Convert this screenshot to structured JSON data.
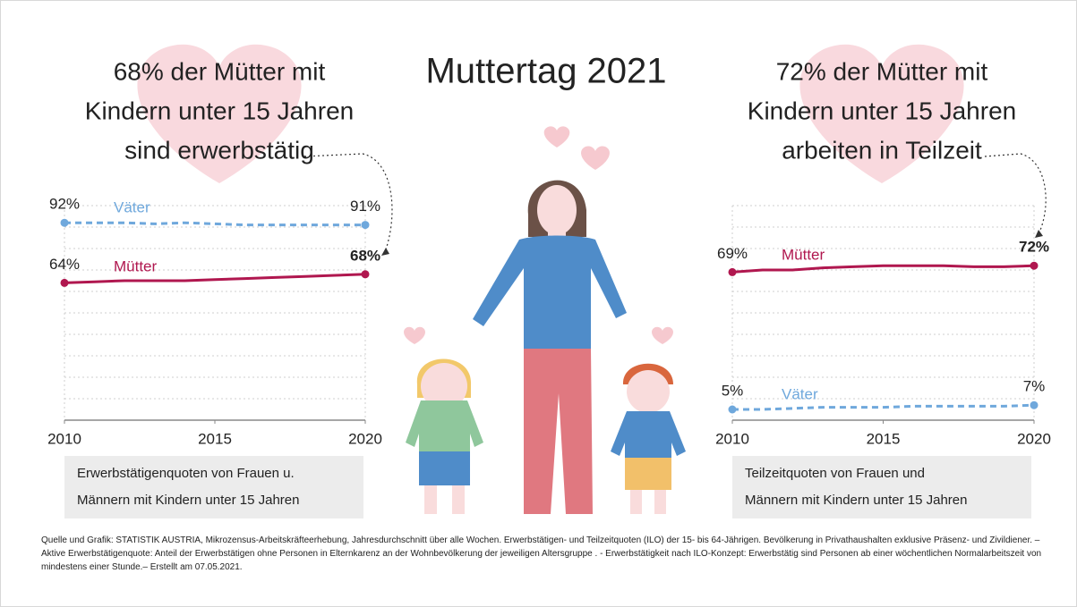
{
  "title": "Muttertag 2021",
  "chart_data": [
    {
      "type": "line",
      "annotation": [
        "68% der Mütter mit",
        "Kindern unter 15 Jahren",
        "sind erwerbstätig"
      ],
      "caption": [
        "Erwerbstätigenquoten von Frauen u.",
        "Männern mit Kindern unter 15 Jahren"
      ],
      "x": [
        2010,
        2011,
        2012,
        2013,
        2014,
        2015,
        2016,
        2017,
        2018,
        2019,
        2020
      ],
      "xlim": [
        2010,
        2020
      ],
      "xticks": [
        2010,
        2015,
        2020
      ],
      "ylim": [
        0,
        100
      ],
      "grid": true,
      "series": [
        {
          "name": "Mütter",
          "color": "#b0174f",
          "linestyle": "solid",
          "values": [
            64,
            64.5,
            65,
            65,
            65,
            65.5,
            66,
            66.5,
            67,
            67.5,
            68
          ],
          "value_labels": [
            "64%",
            null,
            null,
            null,
            null,
            null,
            null,
            null,
            null,
            null,
            "68%"
          ]
        },
        {
          "name": "Väter",
          "color": "#6fa8dc",
          "linestyle": "dashed",
          "values": [
            92,
            92,
            92,
            91.5,
            92,
            91.5,
            91,
            91,
            91,
            91,
            91
          ],
          "value_labels": [
            "92%",
            null,
            null,
            null,
            null,
            null,
            null,
            null,
            null,
            null,
            "91%"
          ]
        }
      ]
    },
    {
      "type": "line",
      "annotation": [
        "72% der Mütter mit",
        "Kindern unter 15 Jahren",
        "arbeiten in Teilzeit"
      ],
      "caption": [
        "Teilzeitquoten von Frauen und",
        "Männern mit Kindern unter 15 Jahren"
      ],
      "x": [
        2010,
        2011,
        2012,
        2013,
        2014,
        2015,
        2016,
        2017,
        2018,
        2019,
        2020
      ],
      "xlim": [
        2010,
        2020
      ],
      "xticks": [
        2010,
        2015,
        2020
      ],
      "ylim": [
        0,
        100
      ],
      "grid": true,
      "series": [
        {
          "name": "Mütter",
          "color": "#b0174f",
          "linestyle": "solid",
          "values": [
            69,
            70,
            70,
            71,
            71.5,
            72,
            72,
            72,
            71.5,
            71.5,
            72
          ],
          "value_labels": [
            "69%",
            null,
            null,
            null,
            null,
            null,
            null,
            null,
            null,
            null,
            "72%"
          ]
        },
        {
          "name": "Väter",
          "color": "#6fa8dc",
          "linestyle": "dashed",
          "values": [
            5,
            5,
            5.5,
            6,
            6,
            6,
            6.5,
            6.5,
            6.5,
            6.5,
            7
          ],
          "value_labels": [
            "5%",
            null,
            null,
            null,
            null,
            null,
            null,
            null,
            null,
            null,
            "7%"
          ]
        }
      ]
    }
  ],
  "footer": "Quelle und Grafik: STATISTIK AUSTRIA, Mikrozensus-Arbeitskräfteerhebung, Jahresdurchschnitt über alle Wochen. Erwerbstätigen- und Teilzeitquoten (ILO) der 15- bis 64-Jährigen. Bevölkerung in Privathaushalten exklusive Präsenz- und Zivildiener. – Aktive Erwerbstätigenquote: Anteil der Erwerbstätigen ohne Personen in Elternkarenz an der Wohnbevölkerung der jeweiligen Altersgruppe . - Erwerbstätigkeit nach ILO-Konzept: Erwerbstätig sind Personen ab einer wöchentlichen Normalarbeitszeit von mindestens einer Stunde.– Erstellt am 07.05.2021."
}
